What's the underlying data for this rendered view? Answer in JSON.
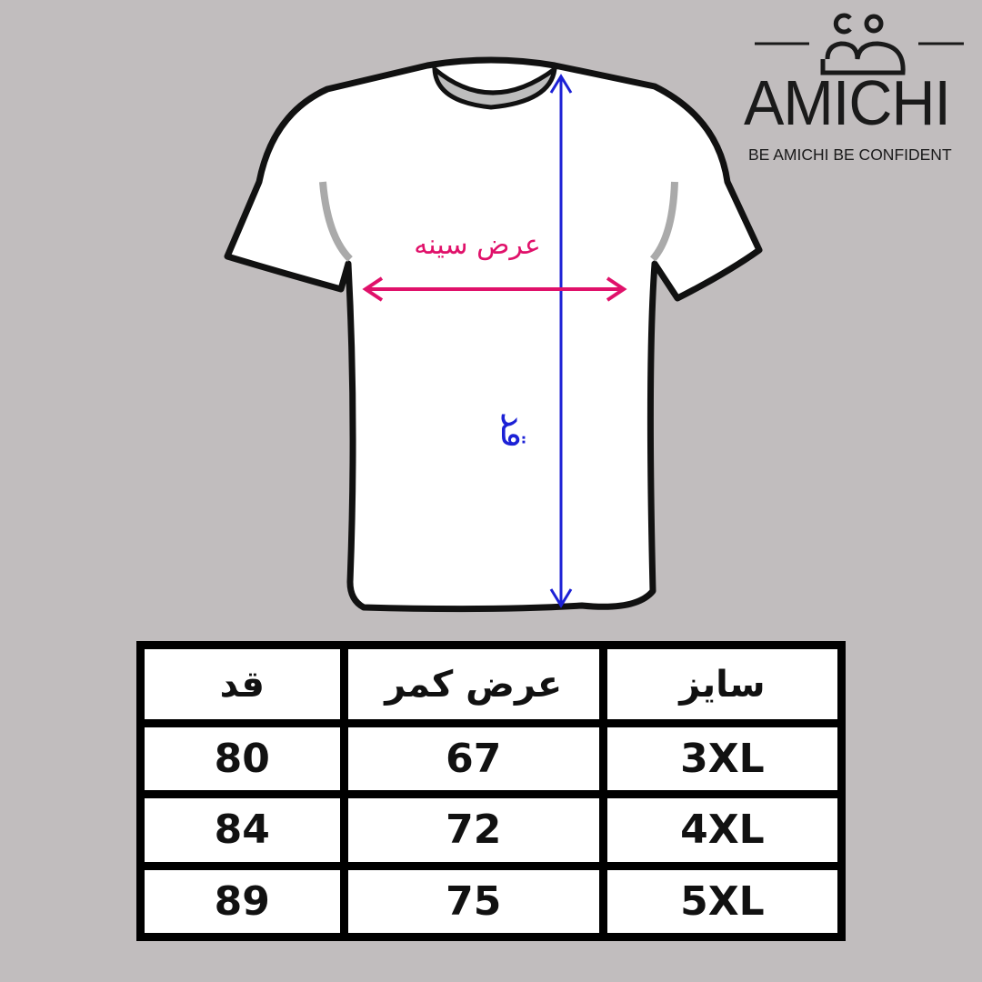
{
  "brand": {
    "name": "AMICHI",
    "tagline": "BE AMICHI BE CONFIDENT"
  },
  "diagram": {
    "chest_label": "عرض سینه",
    "length_label": "قد",
    "chest_arrow_color": "#e0116a",
    "length_arrow_color": "#1c21d6"
  },
  "size_table": {
    "headers": [
      "قد",
      "عرض کمر",
      "سایز"
    ],
    "rows": [
      [
        "80",
        "67",
        "3XL"
      ],
      [
        "84",
        "72",
        "4XL"
      ],
      [
        "89",
        "75",
        "5XL"
      ]
    ]
  }
}
